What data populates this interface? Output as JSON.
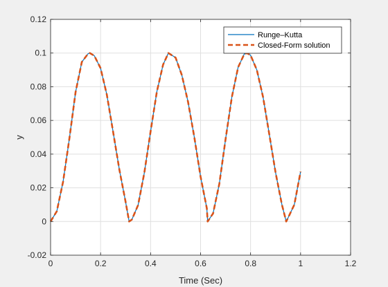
{
  "chart_data": {
    "type": "line",
    "title": "",
    "xlabel": "Time (Sec)",
    "ylabel": "y",
    "xlim": [
      0,
      1.2
    ],
    "ylim": [
      -0.02,
      0.12
    ],
    "x_ticks": [
      0,
      0.2,
      0.4,
      0.6,
      0.8,
      1,
      1.2
    ],
    "x_tick_labels": [
      "0",
      "0.2",
      "0.4",
      "0.6",
      "0.8",
      "1",
      "1.2"
    ],
    "y_ticks": [
      -0.02,
      0,
      0.02,
      0.04,
      0.06,
      0.08,
      0.1,
      0.12
    ],
    "y_tick_labels": [
      "-0.02",
      "0",
      "0.02",
      "0.04",
      "0.06",
      "0.08",
      "0.1",
      "0.12"
    ],
    "grid": true,
    "legend_position": "top-right",
    "series": [
      {
        "name": "Runge–Kutta",
        "color": "#0072BD",
        "style": "solid",
        "x": [
          0,
          0.025,
          0.05,
          0.075,
          0.1,
          0.125,
          0.15,
          0.1571,
          0.175,
          0.2,
          0.225,
          0.25,
          0.275,
          0.3,
          0.3142,
          0.325,
          0.35,
          0.375,
          0.4,
          0.425,
          0.45,
          0.4712,
          0.5,
          0.525,
          0.55,
          0.575,
          0.6,
          0.625,
          0.6283,
          0.65,
          0.675,
          0.7,
          0.725,
          0.75,
          0.775,
          0.7854,
          0.8,
          0.825,
          0.85,
          0.875,
          0.9,
          0.925,
          0.9425,
          0.95,
          0.975,
          1.0
        ],
        "y": [
          0,
          0.0061,
          0.0236,
          0.049,
          0.0768,
          0.0947,
          0.0996,
          0.1,
          0.0984,
          0.091,
          0.0753,
          0.0533,
          0.0309,
          0.0117,
          0.0,
          0.0011,
          0.0097,
          0.0289,
          0.0534,
          0.077,
          0.0931,
          0.1,
          0.0973,
          0.0869,
          0.0709,
          0.05,
          0.0266,
          0.0078,
          0.0,
          0.0048,
          0.0224,
          0.0489,
          0.0738,
          0.0915,
          0.0995,
          0.1,
          0.0987,
          0.09,
          0.0738,
          0.0516,
          0.029,
          0.0102,
          0.0,
          0.0022,
          0.01,
          0.0296
        ]
      },
      {
        "name": "Closed-Form solution",
        "color": "#D95319",
        "style": "dashed",
        "x": [
          0,
          0.025,
          0.05,
          0.075,
          0.1,
          0.125,
          0.15,
          0.1571,
          0.175,
          0.2,
          0.225,
          0.25,
          0.275,
          0.3,
          0.3142,
          0.325,
          0.35,
          0.375,
          0.4,
          0.425,
          0.45,
          0.4712,
          0.5,
          0.525,
          0.55,
          0.575,
          0.6,
          0.625,
          0.6283,
          0.65,
          0.675,
          0.7,
          0.725,
          0.75,
          0.775,
          0.7854,
          0.8,
          0.825,
          0.85,
          0.875,
          0.9,
          0.925,
          0.9425,
          0.95,
          0.975,
          1.0
        ],
        "y": [
          0,
          0.0061,
          0.0236,
          0.049,
          0.0768,
          0.0947,
          0.0996,
          0.1,
          0.0984,
          0.091,
          0.0753,
          0.0533,
          0.0309,
          0.0117,
          0.0,
          0.0011,
          0.0097,
          0.0289,
          0.0534,
          0.077,
          0.0931,
          0.1,
          0.0973,
          0.0869,
          0.0709,
          0.05,
          0.0266,
          0.0078,
          0.0,
          0.0048,
          0.0224,
          0.0489,
          0.0738,
          0.0915,
          0.0995,
          0.1,
          0.0987,
          0.09,
          0.0738,
          0.0516,
          0.029,
          0.0102,
          0.0,
          0.0022,
          0.01,
          0.0296
        ]
      }
    ]
  }
}
